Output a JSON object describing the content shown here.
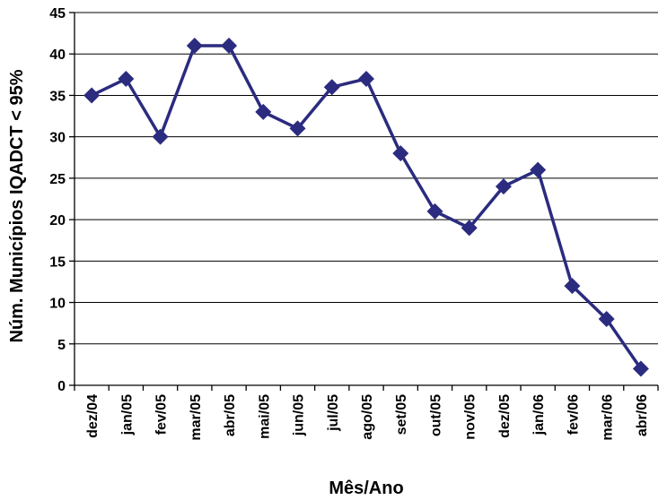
{
  "chart_data": {
    "type": "line",
    "title": "",
    "xlabel": "Mês/Ano",
    "ylabel": "Núm. Municípios IQADCT < 95%",
    "ylim": [
      0,
      45
    ],
    "ytick_step": 5,
    "grid": true,
    "legend": "none",
    "categories": [
      "dez/04",
      "jan/05",
      "fev/05",
      "mar/05",
      "abr/05",
      "mai/05",
      "jun/05",
      "jul/05",
      "ago/05",
      "set/05",
      "out/05",
      "nov/05",
      "dez/05",
      "jan/06",
      "fev/06",
      "mar/06",
      "abr/06"
    ],
    "series": [
      {
        "values": [
          35,
          37,
          30,
          41,
          41,
          33,
          31,
          36,
          37,
          28,
          21,
          19,
          24,
          26,
          12,
          8,
          2
        ],
        "color": "#2b2b7f",
        "marker": "diamond"
      }
    ]
  }
}
